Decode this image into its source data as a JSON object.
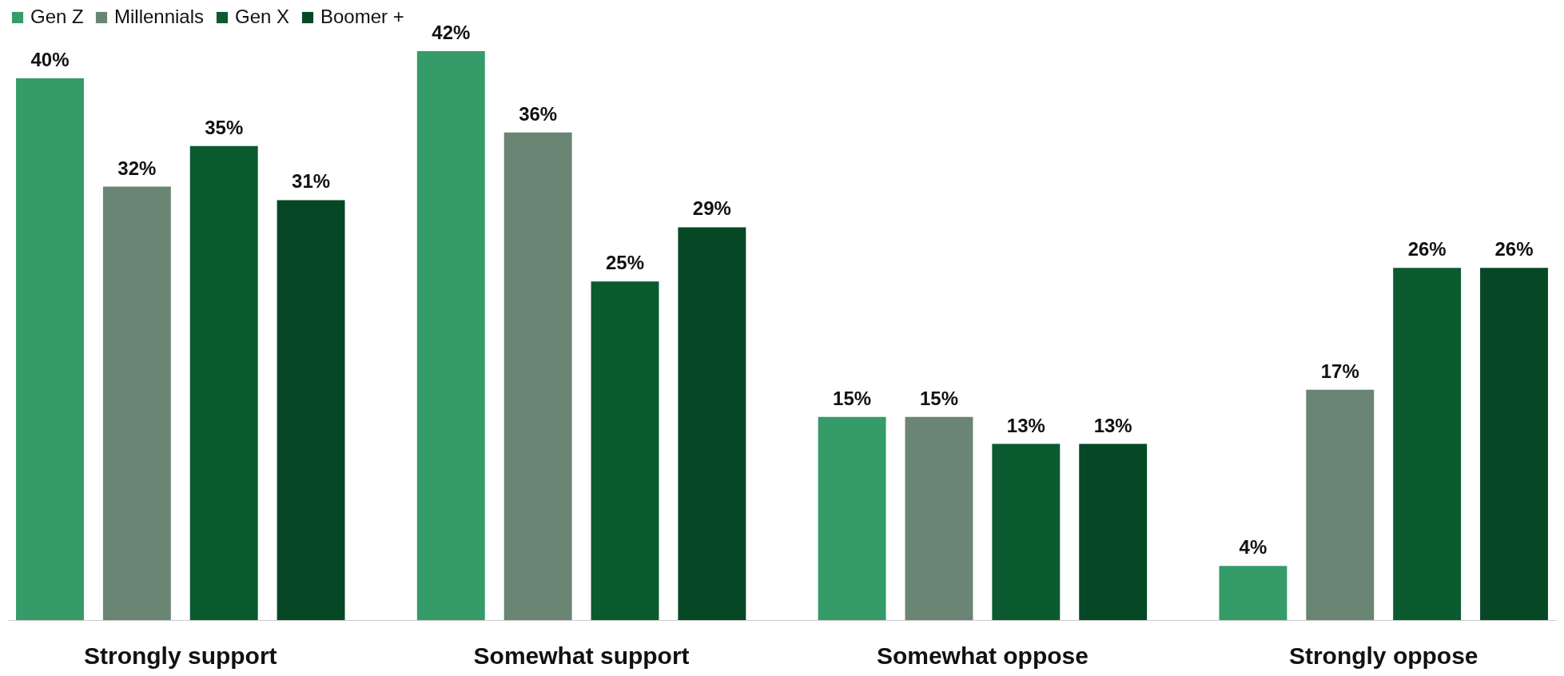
{
  "chart_data": {
    "type": "bar",
    "categories": [
      "Strongly support",
      "Somewhat support",
      "Somewhat oppose",
      "Strongly oppose"
    ],
    "series": [
      {
        "name": "Gen Z",
        "color": "#359b69",
        "values": [
          40,
          42,
          15,
          4
        ],
        "value_labels": [
          "40%",
          "42%",
          "15%",
          "4%"
        ]
      },
      {
        "name": "Millennials",
        "color": "#6a8573",
        "values": [
          32,
          36,
          15,
          17
        ],
        "value_labels": [
          "32%",
          "36%",
          "15%",
          "17%"
        ]
      },
      {
        "name": "Gen X",
        "color": "#0b5a30",
        "values": [
          35,
          25,
          13,
          26
        ],
        "value_labels": [
          "35%",
          "25%",
          "13%",
          "26%"
        ]
      },
      {
        "name": "Boomer +",
        "color": "#064726",
        "values": [
          31,
          29,
          13,
          26
        ],
        "value_labels": [
          "31%",
          "29%",
          "13%",
          "26%"
        ]
      }
    ],
    "legend": "top",
    "grid": false
  }
}
